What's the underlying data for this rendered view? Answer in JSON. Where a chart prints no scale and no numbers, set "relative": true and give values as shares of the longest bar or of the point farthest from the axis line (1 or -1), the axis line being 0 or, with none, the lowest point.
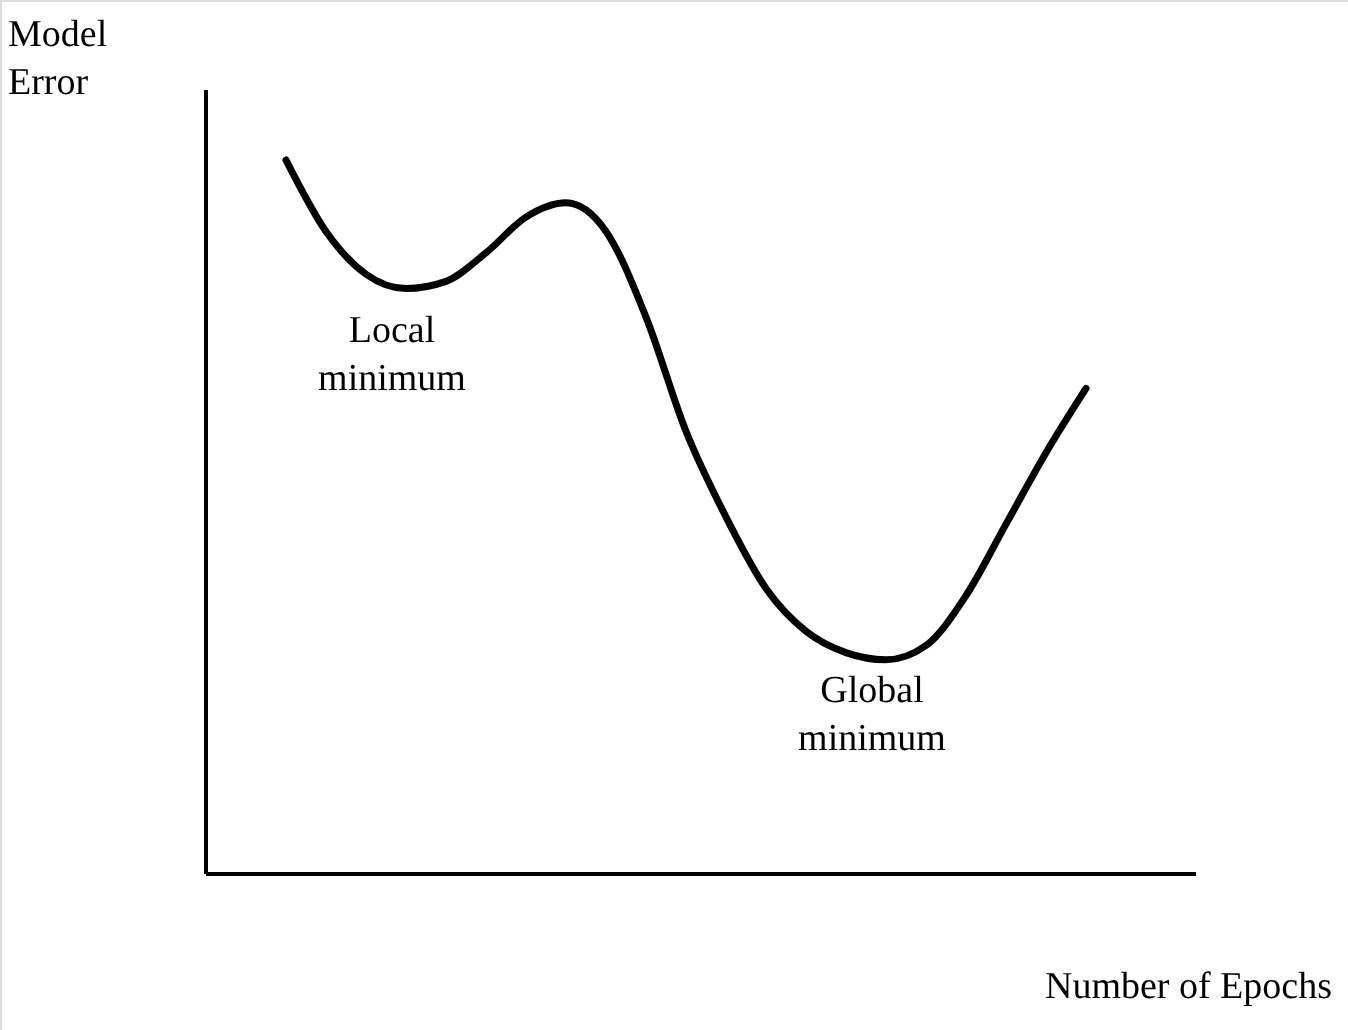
{
  "chart_data": {
    "type": "line",
    "relative": true,
    "xlabel": "Number of Epochs",
    "ylabel": "Model\nError",
    "categories": [
      null,
      null,
      null,
      null,
      null,
      null,
      null,
      null,
      null,
      null,
      null,
      null,
      null,
      null,
      null,
      null,
      null,
      null,
      null,
      null,
      null,
      null,
      null,
      null,
      null
    ],
    "series": [
      {
        "color": "#000000",
        "values": [
          null,
          null,
          1.0,
          0.9,
          0.84,
          0.82,
          0.83,
          0.87,
          0.92,
          0.94,
          0.9,
          0.78,
          0.62,
          0.5,
          0.4,
          0.34,
          0.31,
          0.3,
          0.32,
          0.39,
          0.49,
          0.59,
          0.68,
          null,
          null
        ]
      }
    ],
    "annotations": [
      "Local\nminimum",
      "Global\nminimum"
    ],
    "marker": "none",
    "line_style": "solid"
  }
}
